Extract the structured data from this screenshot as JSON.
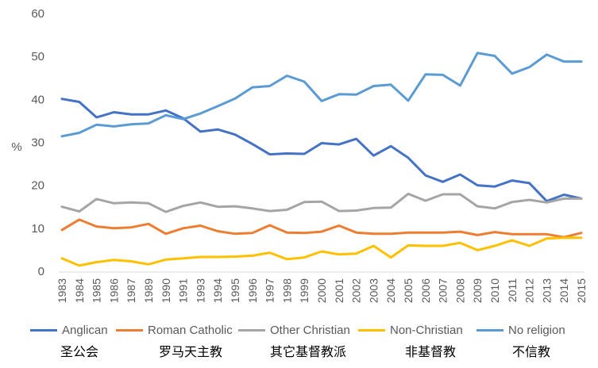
{
  "chart_data": {
    "type": "line",
    "ylabel": "%",
    "ylim": [
      0,
      60
    ],
    "yticks": [
      "0",
      "10",
      "20",
      "30",
      "40",
      "50",
      "60"
    ],
    "grid": false,
    "legend_position": "bottom",
    "categories": [
      "1983",
      "1984",
      "1985",
      "1986",
      "1987",
      "1989",
      "1990",
      "1991",
      "1993",
      "1994",
      "1995",
      "1996",
      "1997",
      "1998",
      "1999",
      "2000",
      "2001",
      "2002",
      "2003",
      "2004",
      "2005",
      "2006",
      "2007",
      "2008",
      "2009",
      "2010",
      "2011",
      "2012",
      "2013",
      "2014",
      "2015"
    ],
    "series": [
      {
        "name": "Anglican",
        "color": "#4472C4",
        "values": [
          40.3,
          39.6,
          36.0,
          37.2,
          36.7,
          36.7,
          37.6,
          35.8,
          32.7,
          33.2,
          32.0,
          29.8,
          27.4,
          27.6,
          27.5,
          30.0,
          29.7,
          31.0,
          27.1,
          29.3,
          26.6,
          22.5,
          21.0,
          22.7,
          20.2,
          19.9,
          21.3,
          20.7,
          16.5,
          18.0,
          17.1
        ]
      },
      {
        "name": "Roman Catholic",
        "color": "#ED7D31",
        "values": [
          9.8,
          12.2,
          10.6,
          10.2,
          10.4,
          11.2,
          8.9,
          10.2,
          10.8,
          9.5,
          8.9,
          9.1,
          10.9,
          9.2,
          9.1,
          9.4,
          10.8,
          9.2,
          8.9,
          8.9,
          9.2,
          9.2,
          9.2,
          9.4,
          8.6,
          9.3,
          8.8,
          8.8,
          8.8,
          8.1,
          9.1
        ]
      },
      {
        "name": "Other Christian",
        "color": "#A5A5A5",
        "values": [
          15.2,
          14.1,
          17.0,
          16.0,
          16.2,
          16.0,
          14.0,
          15.4,
          16.2,
          15.2,
          15.3,
          14.8,
          14.2,
          14.5,
          16.3,
          16.4,
          14.2,
          14.3,
          14.9,
          15.0,
          18.2,
          16.6,
          18.1,
          18.1,
          15.3,
          14.8,
          16.3,
          16.8,
          16.2,
          17.1,
          17.1
        ]
      },
      {
        "name": "Non-Christian",
        "color": "#FFC000",
        "values": [
          3.2,
          1.5,
          2.3,
          2.8,
          2.5,
          1.8,
          2.9,
          3.2,
          3.5,
          3.5,
          3.6,
          3.8,
          4.5,
          3.0,
          3.4,
          4.8,
          4.1,
          4.3,
          6.1,
          3.4,
          6.2,
          6.1,
          6.1,
          6.8,
          5.1,
          6.1,
          7.4,
          6.1,
          7.8,
          8.0,
          8.0
        ]
      },
      {
        "name": "No religion",
        "color": "#5B9BD5",
        "values": [
          31.6,
          32.4,
          34.3,
          33.9,
          34.4,
          34.6,
          36.5,
          35.6,
          36.9,
          38.6,
          40.4,
          43.0,
          43.3,
          45.7,
          44.3,
          39.8,
          41.4,
          41.3,
          43.3,
          43.6,
          39.9,
          46.0,
          45.9,
          43.4,
          51.0,
          50.3,
          46.2,
          47.7,
          50.6,
          49.0,
          49.0
        ]
      }
    ]
  },
  "captions": [
    "圣公会",
    "罗马天主教",
    "其它基督教派",
    "非基督教",
    "不信教"
  ]
}
